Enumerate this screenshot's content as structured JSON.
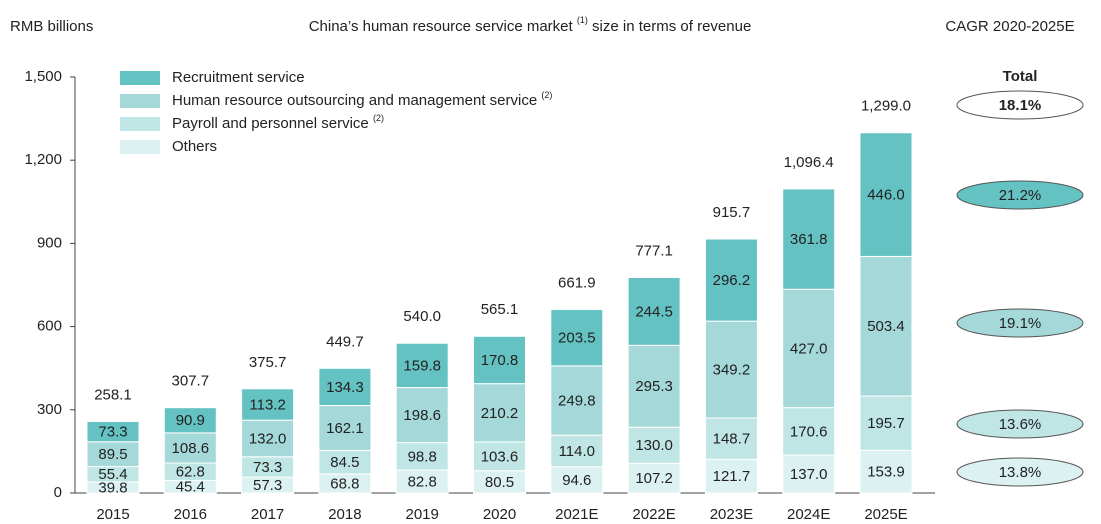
{
  "chart_data": {
    "type": "stacked_bar",
    "title": "China’s human resource service market",
    "title_note": "(1)",
    "title_rest": "size in terms of revenue",
    "y_label": "RMB billions",
    "categories": [
      "2015",
      "2016",
      "2017",
      "2018",
      "2019",
      "2020",
      "2021E",
      "2022E",
      "2023E",
      "2024E",
      "2025E"
    ],
    "series": [
      {
        "name": "Others",
        "color": "#dcf1f1",
        "values": [
          39.8,
          45.4,
          57.3,
          68.8,
          82.8,
          80.5,
          94.6,
          107.2,
          121.7,
          137.0,
          153.9
        ],
        "value_labels": [
          "39.8",
          "45.4",
          "57.3",
          "68.8",
          "82.8",
          "80.5",
          "94.6",
          "107.2",
          "121.7",
          "137.0",
          "153.9"
        ]
      },
      {
        "name": "Payroll and personnel service",
        "note": "(2)",
        "color": "#bfe5e5",
        "values": [
          55.4,
          62.8,
          73.3,
          84.5,
          98.8,
          103.6,
          114.0,
          130.0,
          148.7,
          170.6,
          195.7
        ],
        "value_labels": [
          "55.4",
          "62.8",
          "73.3",
          "84.5",
          "98.8",
          "103.6",
          "114.0",
          "130.0",
          "148.7",
          "170.6",
          "195.7"
        ]
      },
      {
        "name": "Human resource outsourcing and management service",
        "note": "(2)",
        "color": "#a5d9d9",
        "values": [
          89.5,
          108.6,
          132.0,
          162.1,
          198.6,
          210.2,
          249.8,
          295.3,
          349.2,
          427.0,
          503.4
        ],
        "value_labels": [
          "89.5",
          "108.6",
          "132.0",
          "162.1",
          "198.6",
          "210.2",
          "249.8",
          "295.3",
          "349.2",
          "427.0",
          "503.4"
        ]
      },
      {
        "name": "Recruitment service",
        "color": "#64c2c3",
        "values": [
          73.3,
          90.9,
          113.2,
          134.3,
          159.8,
          170.8,
          203.5,
          244.5,
          296.2,
          361.8,
          446.0
        ],
        "value_labels": [
          "73.3",
          "90.9",
          "113.2",
          "134.3",
          "159.8",
          "170.8",
          "203.5",
          "244.5",
          "296.2",
          "361.8",
          "446.0"
        ]
      }
    ],
    "totals": [
      258.1,
      307.7,
      375.7,
      449.7,
      540.0,
      565.1,
      661.9,
      777.1,
      915.7,
      1096.4,
      1299.0
    ],
    "total_labels": [
      "258.1",
      "307.7",
      "375.7",
      "449.7",
      "540.0",
      "565.1",
      "661.9",
      "777.1",
      "915.7",
      "1,096.4",
      "1,299.0"
    ],
    "ylim": [
      0,
      1500
    ],
    "yticks": [
      0,
      300,
      600,
      900,
      {
        "value": 1200,
        "label": "1,200"
      },
      {
        "value": 1500,
        "label": "1,500"
      }
    ],
    "grid": false,
    "cagr": {
      "title": "CAGR 2020-2025E",
      "total_heading": "Total",
      "items": [
        {
          "value": 18.1,
          "label": "18.1%",
          "color": "#ffffff"
        },
        {
          "value": 21.2,
          "label": "21.2%",
          "color": "#64c2c3"
        },
        {
          "value": 19.1,
          "label": "19.1%",
          "color": "#a5d9d9"
        },
        {
          "value": 13.6,
          "label": "13.6%",
          "color": "#bfe5e5"
        },
        {
          "value": 13.8,
          "label": "13.8%",
          "color": "#dcf1f1"
        }
      ]
    }
  }
}
